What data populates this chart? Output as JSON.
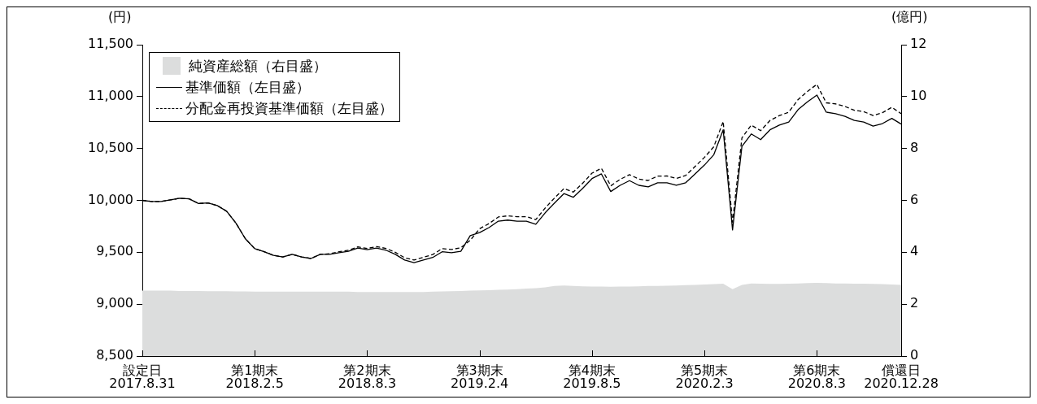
{
  "chart_data": {
    "type": "line",
    "ylabel": "(円)",
    "y2label": "(億円)",
    "categories": [
      "設定日\n2017.8.31",
      null,
      null,
      null,
      null,
      null,
      null,
      null,
      null,
      null,
      null,
      null,
      "第1期末\n2018.2.5",
      null,
      null,
      null,
      null,
      null,
      null,
      null,
      null,
      null,
      null,
      null,
      "第2期末\n2018.8.3",
      null,
      null,
      null,
      null,
      null,
      null,
      null,
      null,
      null,
      null,
      null,
      "第3期末\n2019.2.4",
      null,
      null,
      null,
      null,
      null,
      null,
      null,
      null,
      null,
      null,
      null,
      "第4期末\n2019.8.5",
      null,
      null,
      null,
      null,
      null,
      null,
      null,
      null,
      null,
      null,
      null,
      "第5期末\n2020.2.3",
      null,
      null,
      null,
      null,
      null,
      null,
      null,
      null,
      null,
      null,
      null,
      "第6期末\n2020.8.3",
      null,
      null,
      null,
      null,
      null,
      null,
      null,
      null,
      "償還日\n2020.12.28"
    ],
    "series": [
      {
        "name": "純資産総額（右目盛）",
        "type": "area",
        "axis": "y2",
        "color": "#dcdddd",
        "values": [
          2.52,
          2.52,
          2.52,
          2.52,
          2.51,
          2.51,
          2.51,
          2.5,
          2.5,
          2.5,
          2.49,
          2.49,
          2.48,
          2.48,
          2.48,
          2.48,
          2.48,
          2.48,
          2.48,
          2.48,
          2.48,
          2.48,
          2.48,
          2.47,
          2.47,
          2.47,
          2.47,
          2.47,
          2.47,
          2.47,
          2.47,
          2.48,
          2.49,
          2.5,
          2.51,
          2.52,
          2.53,
          2.54,
          2.55,
          2.56,
          2.58,
          2.6,
          2.62,
          2.65,
          2.7,
          2.72,
          2.7,
          2.69,
          2.68,
          2.68,
          2.67,
          2.68,
          2.68,
          2.69,
          2.7,
          2.7,
          2.71,
          2.72,
          2.73,
          2.74,
          2.76,
          2.77,
          2.79,
          2.58,
          2.74,
          2.8,
          2.79,
          2.78,
          2.78,
          2.79,
          2.8,
          2.81,
          2.82,
          2.81,
          2.8,
          2.8,
          2.79,
          2.79,
          2.78,
          2.77,
          2.76,
          2.74
        ]
      },
      {
        "name": "基準価額（左目盛）",
        "color": "#000000",
        "line_style": "solid",
        "values": [
          10000,
          9990,
          9990,
          10005,
          10020,
          10015,
          9970,
          9975,
          9950,
          9895,
          9780,
          9630,
          9535,
          9505,
          9470,
          9455,
          9480,
          9455,
          9440,
          9480,
          9480,
          9495,
          9510,
          9540,
          9525,
          9540,
          9520,
          9480,
          9425,
          9400,
          9425,
          9450,
          9505,
          9495,
          9510,
          9660,
          9690,
          9738,
          9800,
          9810,
          9800,
          9800,
          9770,
          9880,
          9975,
          10065,
          10030,
          10115,
          10210,
          10255,
          10085,
          10145,
          10190,
          10145,
          10130,
          10170,
          10170,
          10145,
          10170,
          10255,
          10340,
          10440,
          10680,
          9715,
          10520,
          10640,
          10585,
          10680,
          10725,
          10755,
          10875,
          10950,
          11015,
          10850,
          10835,
          10810,
          10770,
          10755,
          10715,
          10740,
          10790,
          10735
        ]
      },
      {
        "name": "分配金再投資基準価額（左目盛）",
        "color": "#000000",
        "line_style": "dashed",
        "values": [
          10000,
          9990,
          9990,
          10005,
          10020,
          10015,
          9970,
          9975,
          9950,
          9895,
          9780,
          9630,
          9535,
          9505,
          9470,
          9455,
          9480,
          9455,
          9440,
          9480,
          9485,
          9505,
          9520,
          9552,
          9537,
          9555,
          9537,
          9500,
          9447,
          9425,
          9452,
          9478,
          9535,
          9527,
          9544,
          9615,
          9727,
          9776,
          9840,
          9851,
          9842,
          9843,
          9815,
          9926,
          10023,
          10113,
          10080,
          10165,
          10262,
          10310,
          10140,
          10202,
          10248,
          10205,
          10192,
          10234,
          10235,
          10212,
          10240,
          10327,
          10414,
          10517,
          10760,
          9790,
          10603,
          10725,
          10672,
          10770,
          10817,
          10850,
          10972,
          11050,
          11118,
          10940,
          10930,
          10905,
          10868,
          10855,
          10818,
          10845,
          10897,
          10835
        ]
      }
    ],
    "ylim": [
      8500,
      11500
    ],
    "yticks": [
      {
        "value": 8500,
        "label": "8,500"
      },
      {
        "value": 9000,
        "label": "9,000"
      },
      {
        "value": 9500,
        "label": "9,500"
      },
      {
        "value": 10000,
        "label": "10,000"
      },
      {
        "value": 10500,
        "label": "10,500"
      },
      {
        "value": 11000,
        "label": "11,000"
      },
      {
        "value": 11500,
        "label": "11,500"
      }
    ],
    "y2lim": [
      0,
      12
    ],
    "y2ticks": [
      0,
      2,
      4,
      6,
      8,
      10,
      12
    ],
    "legend": "top left",
    "marker": "none"
  }
}
